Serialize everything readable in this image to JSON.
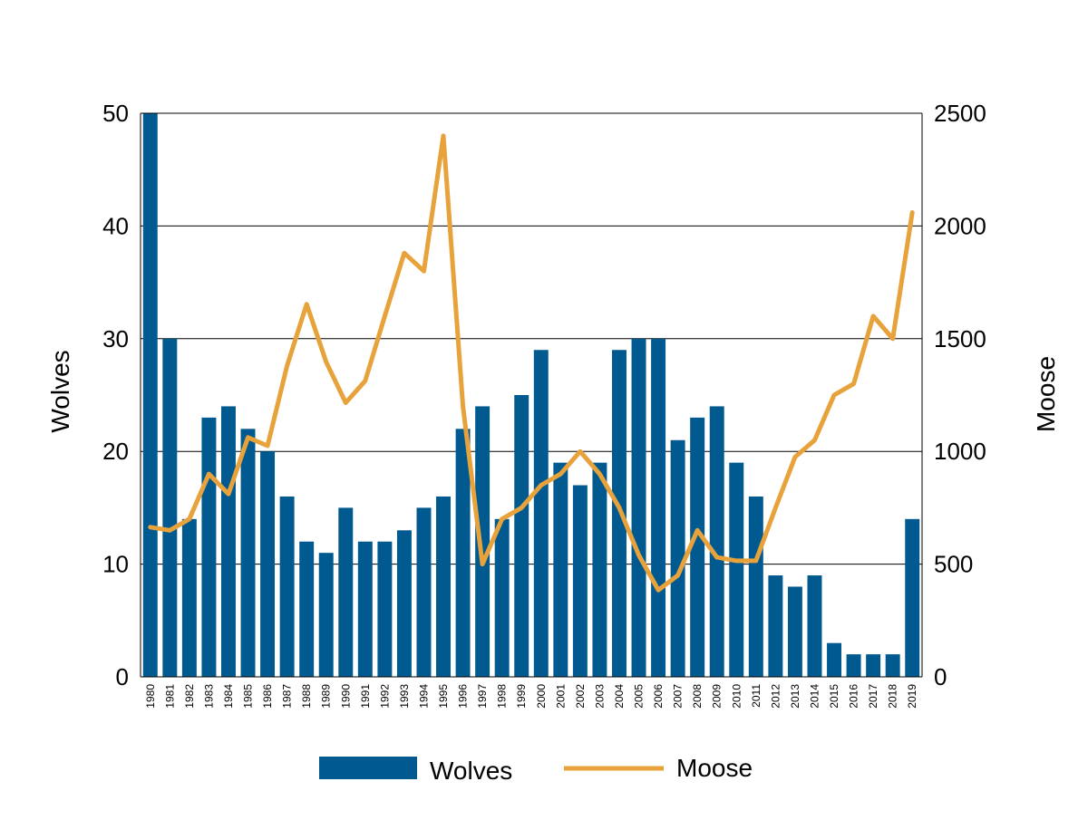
{
  "chart_data": {
    "type": "bar",
    "title": "",
    "xlabel": "",
    "ylabel": "Wolves",
    "y2label": "Moose",
    "ylim": [
      0,
      50
    ],
    "y2lim": [
      0,
      2500
    ],
    "yticks": [
      "0",
      "10",
      "20",
      "30",
      "40",
      "50"
    ],
    "y2ticks": [
      "0",
      "500",
      "1000",
      "1500",
      "2000",
      "2500"
    ],
    "grid": true,
    "legend_position": "bottom-center",
    "categories": [
      "1980",
      "1981",
      "1982",
      "1983",
      "1984",
      "1985",
      "1986",
      "1987",
      "1988",
      "1989",
      "1990",
      "1991",
      "1992",
      "1993",
      "1994",
      "1995",
      "1996",
      "1997",
      "1998",
      "1999",
      "2000",
      "2001",
      "2002",
      "2003",
      "2004",
      "2005",
      "2006",
      "2007",
      "2008",
      "2009",
      "2010",
      "2011",
      "2012",
      "2013",
      "2014",
      "2015",
      "2016",
      "2017",
      "2018",
      "2019"
    ],
    "series": [
      {
        "name": "Wolves",
        "type": "bar",
        "axis": "left",
        "color": "#005a8f",
        "values": [
          50,
          30,
          14,
          23,
          24,
          22,
          20,
          16,
          12,
          11,
          15,
          12,
          12,
          13,
          15,
          16,
          22,
          24,
          14,
          25,
          29,
          19,
          17,
          19,
          29,
          30,
          30,
          21,
          23,
          24,
          19,
          16,
          9,
          8,
          9,
          3,
          2,
          2,
          2,
          14
        ]
      },
      {
        "name": "Moose",
        "type": "line",
        "axis": "right",
        "color": "#e8a23b",
        "values": [
          664,
          650,
          700,
          900,
          811,
          1062,
          1025,
          1380,
          1653,
          1397,
          1216,
          1313,
          1600,
          1880,
          1800,
          2400,
          1200,
          500,
          700,
          750,
          850,
          900,
          1000,
          900,
          750,
          540,
          385,
          450,
          650,
          530,
          515,
          515,
          750,
          975,
          1050,
          1250,
          1300,
          1600,
          1500,
          2060
        ]
      }
    ]
  },
  "legend": {
    "items": [
      {
        "label": "Wolves",
        "color": "#005a8f",
        "kind": "bar"
      },
      {
        "label": "Moose",
        "color": "#e8a23b",
        "kind": "line"
      }
    ]
  }
}
